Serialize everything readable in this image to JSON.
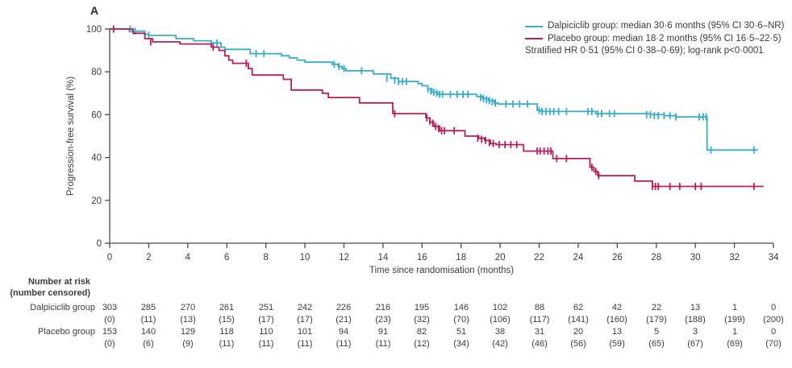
{
  "panel_label": "A",
  "colors": {
    "dalpiciclib": "#35ADCB",
    "placebo": "#B51F5C",
    "axis": "#4a4a4a",
    "text": "#3c3c3c"
  },
  "legend": {
    "entries": [
      {
        "id": "dalpiciclib",
        "label": "Dalpiciclib group: median 30·6 months (95% CI 30·6–NR)",
        "color": "#35ADCB"
      },
      {
        "id": "placebo",
        "label": "Placebo group: median 18·2 months (95% CI 16·5–22·5)",
        "color": "#B51F5C"
      }
    ],
    "note": "Stratified HR 0·51 (95% CI 0·38–0·69); log-rank p<0·0001"
  },
  "chart_data": {
    "type": "line",
    "subtype": "kaplan-meier-step",
    "title": "",
    "xlabel": "Time since randomisation (months)",
    "ylabel": "Progression-free survival (%)",
    "xlim": [
      0,
      34
    ],
    "ylim": [
      0,
      100
    ],
    "xticks": [
      0,
      2,
      4,
      6,
      8,
      10,
      12,
      14,
      16,
      18,
      20,
      22,
      24,
      26,
      28,
      30,
      32,
      34
    ],
    "yticks": [
      0,
      20,
      40,
      60,
      80,
      100
    ],
    "grid": false,
    "legend_position": "top-right",
    "series": [
      {
        "id": "dalpiciclib",
        "name": "Dalpiciclib group",
        "median_months": "30·6",
        "median_ci": "30·6–NR",
        "color": "#35ADCB",
        "end": 33.2,
        "steps": [
          [
            0,
            100
          ],
          [
            1.0,
            99
          ],
          [
            1.8,
            97.5
          ],
          [
            2.0,
            97
          ],
          [
            3.4,
            95.5
          ],
          [
            4.3,
            94.5
          ],
          [
            5.2,
            93.5
          ],
          [
            5.7,
            91.5
          ],
          [
            5.9,
            90.5
          ],
          [
            7.2,
            88.5
          ],
          [
            8.8,
            87.5
          ],
          [
            9.2,
            86.5
          ],
          [
            9.6,
            85.5
          ],
          [
            10.0,
            84.5
          ],
          [
            11.4,
            83.5
          ],
          [
            11.7,
            82.5
          ],
          [
            11.9,
            81.5
          ],
          [
            12.1,
            80.5
          ],
          [
            13.5,
            79
          ],
          [
            14.4,
            77
          ],
          [
            14.8,
            75.5
          ],
          [
            15.8,
            74.5
          ],
          [
            16.0,
            73.5
          ],
          [
            16.3,
            72
          ],
          [
            16.5,
            70.5
          ],
          [
            16.8,
            69.5
          ],
          [
            18.8,
            68.5
          ],
          [
            19.1,
            67.5
          ],
          [
            19.4,
            66.5
          ],
          [
            19.7,
            65.5
          ],
          [
            19.9,
            65
          ],
          [
            21.9,
            62
          ],
          [
            22.1,
            61.5
          ],
          [
            24.9,
            60.5
          ],
          [
            27.7,
            60
          ],
          [
            28.4,
            59.5
          ],
          [
            29.0,
            59
          ],
          [
            30.6,
            43.5
          ]
        ],
        "censors": [
          [
            1.05,
            100
          ],
          [
            1.3,
            99
          ],
          [
            2.0,
            97
          ],
          [
            5.5,
            93.5
          ],
          [
            7.5,
            88.5
          ],
          [
            7.9,
            88.5
          ],
          [
            11.5,
            83.5
          ],
          [
            11.75,
            82.5
          ],
          [
            12.0,
            81.5
          ],
          [
            12.9,
            80.5
          ],
          [
            14.2,
            77
          ],
          [
            14.6,
            76
          ],
          [
            14.8,
            75.5
          ],
          [
            15.0,
            75.5
          ],
          [
            15.2,
            75.5
          ],
          [
            16.3,
            72
          ],
          [
            16.45,
            71
          ],
          [
            16.6,
            70.5
          ],
          [
            16.75,
            70
          ],
          [
            16.9,
            69.5
          ],
          [
            17.05,
            69.5
          ],
          [
            17.45,
            69.5
          ],
          [
            17.8,
            69.5
          ],
          [
            18.1,
            69.5
          ],
          [
            18.35,
            69.5
          ],
          [
            19.0,
            68
          ],
          [
            19.15,
            67.5
          ],
          [
            19.3,
            67
          ],
          [
            19.45,
            66.5
          ],
          [
            19.6,
            66
          ],
          [
            19.75,
            65.5
          ],
          [
            20.3,
            65
          ],
          [
            20.65,
            65
          ],
          [
            21.0,
            65
          ],
          [
            21.4,
            65
          ],
          [
            22.0,
            62
          ],
          [
            22.15,
            61.5
          ],
          [
            22.35,
            61.5
          ],
          [
            22.55,
            61.5
          ],
          [
            22.75,
            61.5
          ],
          [
            23.0,
            61.5
          ],
          [
            23.4,
            61.5
          ],
          [
            24.5,
            61.5
          ],
          [
            24.7,
            61.5
          ],
          [
            25.0,
            60.5
          ],
          [
            25.2,
            60.5
          ],
          [
            25.6,
            60.5
          ],
          [
            25.85,
            60.5
          ],
          [
            27.5,
            60
          ],
          [
            27.7,
            60
          ],
          [
            27.9,
            59.5
          ],
          [
            28.1,
            59.5
          ],
          [
            28.4,
            59.5
          ],
          [
            28.7,
            59.5
          ],
          [
            29.0,
            59
          ],
          [
            30.2,
            59
          ],
          [
            30.4,
            59
          ],
          [
            30.55,
            59
          ],
          [
            30.8,
            43.5
          ],
          [
            33.0,
            43.5
          ]
        ]
      },
      {
        "id": "placebo",
        "name": "Placebo group",
        "median_months": "18·2",
        "median_ci": "16·5–22·5",
        "color": "#B51F5C",
        "end": 33.5,
        "steps": [
          [
            0,
            100
          ],
          [
            1.2,
            98
          ],
          [
            1.8,
            95.5
          ],
          [
            2.2,
            94
          ],
          [
            3.6,
            93
          ],
          [
            5.2,
            91.5
          ],
          [
            5.6,
            90
          ],
          [
            5.9,
            87.5
          ],
          [
            6.1,
            85.5
          ],
          [
            6.3,
            84
          ],
          [
            7.1,
            81.5
          ],
          [
            7.3,
            78.5
          ],
          [
            8.9,
            76.5
          ],
          [
            9.3,
            71.5
          ],
          [
            10.9,
            70
          ],
          [
            11.2,
            68
          ],
          [
            12.8,
            65.5
          ],
          [
            14.5,
            60.5
          ],
          [
            16.2,
            58.5
          ],
          [
            16.4,
            56.5
          ],
          [
            16.6,
            54.5
          ],
          [
            16.9,
            52.5
          ],
          [
            18.2,
            50
          ],
          [
            18.9,
            49
          ],
          [
            19.2,
            48
          ],
          [
            19.5,
            46.5
          ],
          [
            19.8,
            46
          ],
          [
            21.2,
            43
          ],
          [
            22.7,
            39.5
          ],
          [
            24.6,
            35.5
          ],
          [
            24.8,
            33.5
          ],
          [
            25.0,
            31.5
          ],
          [
            26.9,
            29
          ],
          [
            27.8,
            26.5
          ]
        ],
        "censors": [
          [
            0.2,
            100
          ],
          [
            2.1,
            94
          ],
          [
            5.3,
            91.5
          ],
          [
            7.0,
            84
          ],
          [
            14.6,
            60.5
          ],
          [
            16.25,
            58.5
          ],
          [
            16.4,
            57
          ],
          [
            16.55,
            56
          ],
          [
            16.7,
            54.5
          ],
          [
            16.85,
            53.5
          ],
          [
            17.0,
            52.5
          ],
          [
            17.15,
            52.5
          ],
          [
            17.65,
            52.5
          ],
          [
            18.85,
            49
          ],
          [
            19.05,
            48.5
          ],
          [
            19.25,
            48
          ],
          [
            19.45,
            47
          ],
          [
            19.65,
            46.5
          ],
          [
            19.95,
            46
          ],
          [
            20.25,
            46
          ],
          [
            20.55,
            46
          ],
          [
            20.85,
            46
          ],
          [
            21.9,
            43
          ],
          [
            22.05,
            43
          ],
          [
            22.25,
            43
          ],
          [
            22.45,
            43
          ],
          [
            22.6,
            43
          ],
          [
            22.9,
            39.5
          ],
          [
            23.4,
            39.5
          ],
          [
            24.7,
            35.5
          ],
          [
            24.9,
            33.5
          ],
          [
            25.05,
            31.5
          ],
          [
            27.8,
            26.5
          ],
          [
            27.95,
            26.5
          ],
          [
            28.1,
            26.5
          ],
          [
            28.7,
            26.5
          ],
          [
            29.2,
            26.5
          ],
          [
            30.0,
            26.5
          ],
          [
            30.3,
            26.5
          ],
          [
            33.0,
            26.5
          ]
        ]
      }
    ]
  },
  "risk_table": {
    "header_line1": "Number at risk",
    "header_line2": "(number censored)",
    "columns_months": [
      0,
      2,
      4,
      6,
      8,
      10,
      12,
      14,
      16,
      18,
      20,
      22,
      24,
      26,
      28,
      30,
      32,
      34
    ],
    "rows": [
      {
        "label": "Dalpiciclib group",
        "at_risk": [
          "303",
          "285",
          "270",
          "261",
          "251",
          "242",
          "226",
          "216",
          "195",
          "146",
          "102",
          "88",
          "62",
          "42",
          "22",
          "13",
          "1",
          "0"
        ],
        "censored": [
          "(0)",
          "(11)",
          "(13)",
          "(15)",
          "(17)",
          "(17)",
          "(21)",
          "(23)",
          "(32)",
          "(70)",
          "(106)",
          "(117)",
          "(141)",
          "(160)",
          "(179)",
          "(188)",
          "(199)",
          "(200)"
        ]
      },
      {
        "label": "Placebo group",
        "at_risk": [
          "153",
          "140",
          "129",
          "118",
          "110",
          "101",
          "94",
          "91",
          "82",
          "51",
          "38",
          "31",
          "20",
          "13",
          "5",
          "3",
          "1",
          "0"
        ],
        "censored": [
          "(0)",
          "(6)",
          "(9)",
          "(11)",
          "(11)",
          "(11)",
          "(11)",
          "(11)",
          "(12)",
          "(34)",
          "(42)",
          "(46)",
          "(56)",
          "(59)",
          "(65)",
          "(67)",
          "(69)",
          "(70)"
        ]
      }
    ]
  }
}
